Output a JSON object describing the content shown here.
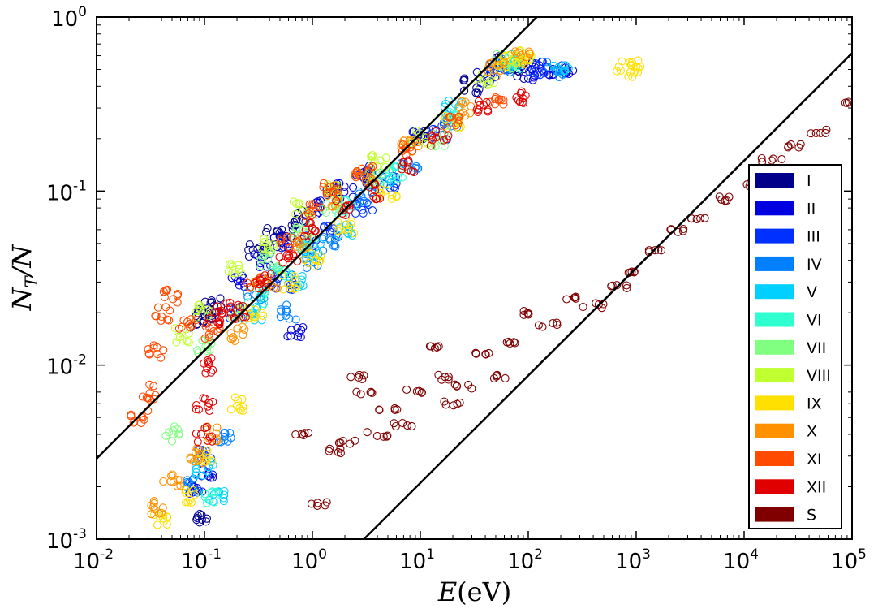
{
  "chart_data": {
    "type": "scatter",
    "xscale": "log",
    "yscale": "log",
    "xlim": [
      0.01,
      100000
    ],
    "ylim": [
      0.001,
      1
    ],
    "xlabel": {
      "var": "E",
      "unit": "(eV)"
    },
    "ylabel": {
      "var": "N",
      "sub": "T",
      "rest": "/N"
    },
    "x_ticks": [
      {
        "base": "10",
        "exp": "-2"
      },
      {
        "base": "10",
        "exp": "-1"
      },
      {
        "base": "10",
        "exp": "0"
      },
      {
        "base": "10",
        "exp": "1"
      },
      {
        "base": "10",
        "exp": "2"
      },
      {
        "base": "10",
        "exp": "3"
      },
      {
        "base": "10",
        "exp": "4"
      },
      {
        "base": "10",
        "exp": "5"
      }
    ],
    "y_ticks": [
      {
        "base": "10",
        "exp": "-3"
      },
      {
        "base": "10",
        "exp": "-2"
      },
      {
        "base": "10",
        "exp": "-1"
      },
      {
        "base": "10",
        "exp": "0"
      }
    ],
    "legend_position": "right",
    "series": [
      {
        "name": "I",
        "color": "#00008b",
        "pts": [
          [
            0.09,
            0.018
          ],
          [
            0.1,
            0.02
          ],
          [
            0.12,
            0.022
          ],
          [
            0.09,
            0.0013
          ],
          [
            0.3,
            0.045
          ],
          [
            0.45,
            0.055
          ],
          [
            0.6,
            0.06
          ],
          [
            0.8,
            0.07
          ],
          [
            1.5,
            0.1
          ],
          [
            3,
            0.12
          ],
          [
            10,
            0.2
          ],
          [
            30,
            0.4
          ],
          [
            60,
            0.55
          ],
          [
            90,
            0.5
          ]
        ]
      },
      {
        "name": "II",
        "color": "#0000e0",
        "pts": [
          [
            0.08,
            0.002
          ],
          [
            0.1,
            0.0025
          ],
          [
            0.2,
            0.03
          ],
          [
            0.35,
            0.04
          ],
          [
            0.5,
            0.05
          ],
          [
            0.7,
            0.015
          ],
          [
            1,
            0.08
          ],
          [
            2,
            0.1
          ],
          [
            3,
            0.13
          ],
          [
            10,
            0.2
          ],
          [
            40,
            0.45
          ],
          [
            100,
            0.48
          ],
          [
            150,
            0.5
          ],
          [
            220,
            0.5
          ]
        ]
      },
      {
        "name": "III",
        "color": "#0030ff",
        "pts": [
          [
            0.1,
            0.003
          ],
          [
            0.2,
            0.02
          ],
          [
            0.4,
            0.03
          ],
          [
            0.6,
            0.03
          ],
          [
            0.9,
            0.05
          ],
          [
            1.5,
            0.06
          ],
          [
            3,
            0.08
          ],
          [
            5,
            0.11
          ],
          [
            15,
            0.22
          ],
          [
            50,
            0.5
          ],
          [
            120,
            0.5
          ]
        ]
      },
      {
        "name": "IV",
        "color": "#0080ff",
        "pts": [
          [
            0.08,
            0.002
          ],
          [
            0.15,
            0.004
          ],
          [
            0.3,
            0.025
          ],
          [
            0.6,
            0.02
          ],
          [
            1,
            0.04
          ],
          [
            1.5,
            0.05
          ],
          [
            3,
            0.09
          ],
          [
            8,
            0.14
          ],
          [
            20,
            0.25
          ],
          [
            60,
            0.52
          ],
          [
            180,
            0.5
          ]
        ]
      },
      {
        "name": "V",
        "color": "#00d0ff",
        "pts": [
          [
            0.1,
            0.0025
          ],
          [
            0.13,
            0.0017
          ],
          [
            0.3,
            0.02
          ],
          [
            0.7,
            0.03
          ],
          [
            1,
            0.045
          ],
          [
            2,
            0.06
          ],
          [
            5,
            0.12
          ],
          [
            20,
            0.3
          ],
          [
            70,
            0.55
          ],
          [
            200,
            0.53
          ]
        ]
      },
      {
        "name": "VI",
        "color": "#30ffd0",
        "pts": [
          [
            0.12,
            0.0017
          ],
          [
            0.3,
            0.025
          ],
          [
            0.5,
            0.035
          ],
          [
            0.9,
            0.05
          ],
          [
            2,
            0.08
          ],
          [
            6,
            0.13
          ],
          [
            20,
            0.28
          ],
          [
            70,
            0.56
          ]
        ]
      },
      {
        "name": "VII",
        "color": "#80ff80",
        "pts": [
          [
            0.05,
            0.004
          ],
          [
            0.1,
            0.013
          ],
          [
            0.2,
            0.02
          ],
          [
            0.4,
            0.04
          ],
          [
            0.8,
            0.06
          ],
          [
            1.5,
            0.08
          ],
          [
            4,
            0.12
          ],
          [
            15,
            0.2
          ],
          [
            60,
            0.55
          ]
        ]
      },
      {
        "name": "VIII",
        "color": "#c0ff30",
        "pts": [
          [
            0.06,
            0.015
          ],
          [
            0.1,
            0.02
          ],
          [
            0.2,
            0.035
          ],
          [
            0.4,
            0.05
          ],
          [
            0.8,
            0.08
          ],
          [
            1.5,
            0.1
          ],
          [
            4,
            0.15
          ],
          [
            10,
            0.2
          ],
          [
            40,
            0.45
          ],
          [
            90,
            0.58
          ]
        ]
      },
      {
        "name": "IX",
        "color": "#ffe000",
        "pts": [
          [
            0.04,
            0.0013
          ],
          [
            0.07,
            0.0018
          ],
          [
            0.1,
            0.003
          ],
          [
            0.2,
            0.006
          ],
          [
            0.3,
            0.02
          ],
          [
            0.6,
            0.03
          ],
          [
            1,
            0.04
          ],
          [
            2,
            0.06
          ],
          [
            5,
            0.1
          ],
          [
            20,
            0.25
          ],
          [
            60,
            0.55
          ],
          [
            90,
            0.6
          ],
          [
            800,
            0.5
          ],
          [
            1050,
            0.51
          ]
        ]
      },
      {
        "name": "X",
        "color": "#ff9000",
        "pts": [
          [
            0.035,
            0.0015
          ],
          [
            0.05,
            0.0022
          ],
          [
            0.08,
            0.003
          ],
          [
            0.12,
            0.004
          ],
          [
            0.2,
            0.015
          ],
          [
            0.4,
            0.03
          ],
          [
            0.8,
            0.05
          ],
          [
            1.5,
            0.09
          ],
          [
            3,
            0.12
          ],
          [
            8,
            0.18
          ],
          [
            25,
            0.3
          ],
          [
            50,
            0.5
          ],
          [
            90,
            0.58
          ]
        ]
      },
      {
        "name": "XI",
        "color": "#ff4a00",
        "pts": [
          [
            0.025,
            0.005
          ],
          [
            0.03,
            0.007
          ],
          [
            0.035,
            0.012
          ],
          [
            0.04,
            0.02
          ],
          [
            0.05,
            0.025
          ],
          [
            0.07,
            0.017
          ],
          [
            0.12,
            0.015
          ],
          [
            0.3,
            0.03
          ],
          [
            0.6,
            0.05
          ],
          [
            1,
            0.08
          ],
          [
            1.5,
            0.1
          ],
          [
            3,
            0.13
          ],
          [
            8,
            0.18
          ],
          [
            20,
            0.25
          ],
          [
            50,
            0.35
          ]
        ]
      },
      {
        "name": "XII",
        "color": "#e00000",
        "pts": [
          [
            0.1,
            0.004
          ],
          [
            0.1,
            0.006
          ],
          [
            0.11,
            0.01
          ],
          [
            0.12,
            0.018
          ],
          [
            0.15,
            0.022
          ],
          [
            0.2,
            0.02
          ],
          [
            0.35,
            0.03
          ],
          [
            0.6,
            0.04
          ],
          [
            1,
            0.06
          ],
          [
            2,
            0.08
          ],
          [
            4,
            0.1
          ],
          [
            8,
            0.14
          ],
          [
            15,
            0.2
          ],
          [
            40,
            0.3
          ],
          [
            80,
            0.34
          ]
        ]
      },
      {
        "name": "S",
        "color": "#800000",
        "pts": [
          [
            0.8,
            0.004
          ],
          [
            1.2,
            0.0016
          ],
          [
            1.5,
            0.0032
          ],
          [
            2,
            0.0036
          ],
          [
            2.5,
            0.0085
          ],
          [
            3,
            0.007
          ],
          [
            4,
            0.004
          ],
          [
            5,
            0.0055
          ],
          [
            7,
            0.0045
          ],
          [
            9,
            0.007
          ],
          [
            12,
            0.0125
          ],
          [
            15,
            0.0085
          ],
          [
            20,
            0.006
          ],
          [
            25,
            0.0075
          ],
          [
            35,
            0.0115
          ],
          [
            50,
            0.0085
          ],
          [
            70,
            0.0135
          ],
          [
            100,
            0.02
          ],
          [
            150,
            0.017
          ],
          [
            250,
            0.024
          ],
          [
            400,
            0.022
          ],
          [
            700,
            0.028
          ],
          [
            1000,
            0.035
          ],
          [
            1500,
            0.045
          ],
          [
            2500,
            0.06
          ],
          [
            4000,
            0.07
          ],
          [
            7000,
            0.09
          ],
          [
            10000,
            0.11
          ],
          [
            18000,
            0.15
          ],
          [
            30000,
            0.18
          ],
          [
            50000,
            0.22
          ],
          [
            100000,
            0.33
          ]
        ]
      }
    ],
    "fit_lines": [
      {
        "x": [
          0.01,
          120
        ],
        "y": [
          0.0029,
          1.0
        ]
      },
      {
        "x": [
          3,
          100000
        ],
        "y": [
          0.001,
          0.62
        ]
      }
    ]
  }
}
